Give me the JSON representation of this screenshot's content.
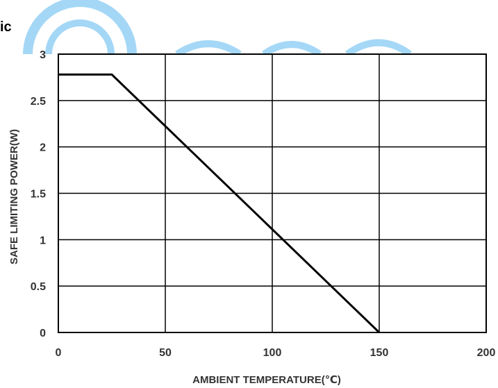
{
  "page": {
    "heading_fragment": "ic",
    "watermark_color": "#5bb8f0"
  },
  "chart_data": {
    "type": "line",
    "title": "",
    "xlabel": "AMBIENT TEMPERATURE(℃)",
    "ylabel": "SAFE LIMITING POWER(W)",
    "xlim": [
      0,
      200
    ],
    "ylim": [
      0,
      3
    ],
    "x_ticks": [
      "0",
      "50",
      "100",
      "150",
      "200"
    ],
    "y_ticks": [
      "0",
      "0.5",
      "1",
      "1.5",
      "2",
      "2.5",
      "3"
    ],
    "grid": true,
    "legend": "none",
    "series": [
      {
        "x": [
          0,
          25,
          150
        ],
        "y": [
          2.78,
          2.78,
          0
        ],
        "color": "#000000"
      }
    ]
  }
}
